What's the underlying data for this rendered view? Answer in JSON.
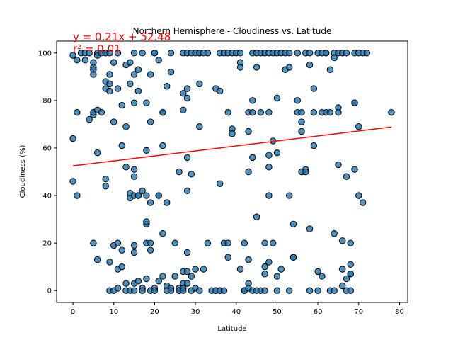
{
  "chart_data": {
    "type": "scatter",
    "title": "Northern Hemisphere - Cloudiness vs. Latitude",
    "xlabel": "Latitude",
    "ylabel": "Cloudiness (%)",
    "xlim": [
      -4,
      82
    ],
    "ylim": [
      -5,
      105
    ],
    "xticks": [
      0,
      10,
      20,
      30,
      40,
      50,
      60,
      70,
      80
    ],
    "yticks": [
      0,
      20,
      40,
      60,
      80,
      100
    ],
    "grid": false,
    "marker_color": "#1f77b4",
    "marker_edge_color": "#000000",
    "regression": {
      "equation": "y = 0.21x + 52.48",
      "r_squared": "r² = 0.01",
      "slope": 0.21,
      "intercept": 52.48,
      "x_range": [
        0,
        78
      ],
      "color": "#ff0000"
    },
    "points": [
      [
        0,
        99
      ],
      [
        0,
        64
      ],
      [
        0,
        46
      ],
      [
        1,
        97
      ],
      [
        1,
        40
      ],
      [
        1,
        75
      ],
      [
        2,
        100
      ],
      [
        3,
        100
      ],
      [
        3,
        97
      ],
      [
        4,
        100
      ],
      [
        4,
        72
      ],
      [
        5,
        96
      ],
      [
        5,
        94
      ],
      [
        5,
        93
      ],
      [
        5,
        91
      ],
      [
        5,
        74
      ],
      [
        5,
        75
      ],
      [
        5,
        20
      ],
      [
        6,
        100
      ],
      [
        6,
        99
      ],
      [
        6,
        76
      ],
      [
        6,
        58
      ],
      [
        6,
        13
      ],
      [
        7,
        100
      ],
      [
        7,
        75
      ],
      [
        8,
        100
      ],
      [
        8,
        88
      ],
      [
        8,
        85
      ],
      [
        8,
        47
      ],
      [
        8,
        44
      ],
      [
        9,
        12
      ],
      [
        9,
        0
      ],
      [
        9,
        100
      ],
      [
        9,
        91
      ],
      [
        9,
        87
      ],
      [
        9,
        84
      ],
      [
        10,
        96
      ],
      [
        10,
        71
      ],
      [
        10,
        19
      ],
      [
        10,
        0
      ],
      [
        11,
        100
      ],
      [
        11,
        85
      ],
      [
        11,
        1
      ],
      [
        11,
        20
      ],
      [
        11,
        9
      ],
      [
        12,
        78
      ],
      [
        12,
        61
      ],
      [
        12,
        10
      ],
      [
        12,
        17
      ],
      [
        13,
        95
      ],
      [
        13,
        69
      ],
      [
        13,
        52
      ],
      [
        13,
        3
      ],
      [
        13,
        0
      ],
      [
        14,
        96
      ],
      [
        14,
        87
      ],
      [
        14,
        39
      ],
      [
        14,
        41
      ],
      [
        14,
        0
      ],
      [
        15,
        100
      ],
      [
        15,
        91
      ],
      [
        15,
        79
      ],
      [
        15,
        48
      ],
      [
        15,
        51
      ],
      [
        15,
        40
      ],
      [
        15,
        19
      ],
      [
        15,
        16
      ],
      [
        15,
        3
      ],
      [
        15,
        0
      ],
      [
        16,
        93
      ],
      [
        16,
        84
      ],
      [
        16,
        40
      ],
      [
        16,
        40
      ],
      [
        16,
        4
      ],
      [
        17,
        100
      ],
      [
        17,
        1
      ],
      [
        17,
        0
      ],
      [
        17,
        42
      ],
      [
        18,
        79
      ],
      [
        18,
        59
      ],
      [
        18,
        28
      ],
      [
        18,
        29
      ],
      [
        18,
        20
      ],
      [
        18,
        5
      ],
      [
        18,
        40
      ],
      [
        19,
        91
      ],
      [
        19,
        71
      ],
      [
        19,
        37
      ],
      [
        19,
        20
      ],
      [
        19,
        17
      ],
      [
        19,
        0
      ],
      [
        20,
        100
      ],
      [
        20,
        100
      ],
      [
        20,
        1
      ],
      [
        20,
        0
      ],
      [
        21,
        97
      ],
      [
        21,
        40
      ],
      [
        21,
        4
      ],
      [
        21,
        40
      ],
      [
        22,
        61
      ],
      [
        22,
        75
      ],
      [
        22,
        75
      ],
      [
        22,
        24
      ],
      [
        22,
        6
      ],
      [
        23,
        86
      ],
      [
        23,
        37
      ],
      [
        23,
        2
      ],
      [
        23,
        0
      ],
      [
        24,
        1
      ],
      [
        24,
        0
      ],
      [
        24,
        92
      ],
      [
        24,
        100
      ],
      [
        25,
        20
      ],
      [
        25,
        6
      ],
      [
        26,
        50
      ],
      [
        26,
        0
      ],
      [
        26,
        1
      ],
      [
        26,
        0
      ],
      [
        27,
        100
      ],
      [
        27,
        76
      ],
      [
        27,
        83
      ],
      [
        27,
        8
      ],
      [
        27,
        3
      ],
      [
        27,
        1
      ],
      [
        27,
        0
      ],
      [
        28,
        100
      ],
      [
        28,
        85
      ],
      [
        28,
        81
      ],
      [
        28,
        56
      ],
      [
        28,
        42
      ],
      [
        28,
        16
      ],
      [
        28,
        8
      ],
      [
        28,
        3
      ],
      [
        29,
        100
      ],
      [
        29,
        49
      ],
      [
        29,
        0
      ],
      [
        29,
        6
      ],
      [
        30,
        100
      ],
      [
        30,
        9
      ],
      [
        30,
        1
      ],
      [
        31,
        100
      ],
      [
        31,
        100
      ],
      [
        31,
        87
      ],
      [
        31,
        69
      ],
      [
        31,
        0
      ],
      [
        32,
        9
      ],
      [
        32,
        100
      ],
      [
        33,
        100
      ],
      [
        33,
        20
      ],
      [
        34,
        0
      ],
      [
        35,
        85
      ],
      [
        35,
        0
      ],
      [
        35,
        0
      ],
      [
        36,
        100
      ],
      [
        36,
        84
      ],
      [
        36,
        45
      ],
      [
        36,
        0
      ],
      [
        36,
        0
      ],
      [
        37,
        20
      ],
      [
        37,
        0
      ],
      [
        37,
        100
      ],
      [
        38,
        100
      ],
      [
        38,
        75
      ],
      [
        38,
        20
      ],
      [
        38,
        14
      ],
      [
        39,
        100
      ],
      [
        39,
        68
      ],
      [
        39,
        66
      ],
      [
        40,
        100
      ],
      [
        41,
        100
      ],
      [
        41,
        96
      ],
      [
        41,
        9
      ],
      [
        41,
        94
      ],
      [
        42,
        0
      ],
      [
        42,
        20
      ],
      [
        42,
        0
      ],
      [
        43,
        50
      ],
      [
        43,
        75
      ],
      [
        43,
        67
      ],
      [
        43,
        13
      ],
      [
        43,
        3
      ],
      [
        43,
        1
      ],
      [
        44,
        100
      ],
      [
        44,
        80
      ],
      [
        44,
        75
      ],
      [
        44,
        56
      ],
      [
        44,
        0
      ],
      [
        45,
        100
      ],
      [
        45,
        94
      ],
      [
        45,
        0
      ],
      [
        45,
        31
      ],
      [
        46,
        100
      ],
      [
        46,
        75
      ],
      [
        46,
        0
      ],
      [
        47,
        20
      ],
      [
        47,
        100
      ],
      [
        47,
        10
      ],
      [
        47,
        7
      ],
      [
        47,
        0
      ],
      [
        48,
        100
      ],
      [
        48,
        75
      ],
      [
        48,
        57
      ],
      [
        48,
        52
      ],
      [
        48,
        40
      ],
      [
        48,
        12
      ],
      [
        49,
        100
      ],
      [
        49,
        63
      ],
      [
        49,
        20
      ],
      [
        50,
        100
      ],
      [
        50,
        81
      ],
      [
        50,
        58
      ],
      [
        50,
        0
      ],
      [
        50,
        6
      ],
      [
        51,
        100
      ],
      [
        51,
        9
      ],
      [
        52,
        93
      ],
      [
        52,
        100
      ],
      [
        53,
        94
      ],
      [
        53,
        100
      ],
      [
        53,
        40
      ],
      [
        53,
        0
      ],
      [
        54,
        28
      ],
      [
        54,
        14
      ],
      [
        54,
        14
      ],
      [
        55,
        80
      ],
      [
        55,
        75
      ],
      [
        55,
        100
      ],
      [
        56,
        75
      ],
      [
        56,
        71
      ],
      [
        56,
        67
      ],
      [
        56,
        50
      ],
      [
        57,
        100
      ],
      [
        57,
        51
      ],
      [
        57,
        50
      ],
      [
        58,
        0
      ],
      [
        58,
        100
      ],
      [
        58,
        26
      ],
      [
        58,
        95
      ],
      [
        59,
        75
      ],
      [
        59,
        61
      ],
      [
        59,
        85
      ],
      [
        60,
        100
      ],
      [
        60,
        8
      ],
      [
        60,
        0
      ],
      [
        61,
        100
      ],
      [
        61,
        75
      ],
      [
        61,
        6
      ],
      [
        62,
        100
      ],
      [
        62,
        75
      ],
      [
        62,
        100
      ],
      [
        63,
        93
      ],
      [
        63,
        75
      ],
      [
        63,
        0
      ],
      [
        64,
        100
      ],
      [
        64,
        98
      ],
      [
        64,
        24
      ],
      [
        64,
        0
      ],
      [
        65,
        100
      ],
      [
        65,
        77
      ],
      [
        65,
        75
      ],
      [
        65,
        53
      ],
      [
        66,
        100
      ],
      [
        66,
        21
      ],
      [
        66,
        9
      ],
      [
        66,
        2
      ],
      [
        67,
        100
      ],
      [
        67,
        48
      ],
      [
        67,
        5
      ],
      [
        67,
        0
      ],
      [
        68,
        20
      ],
      [
        68,
        11
      ],
      [
        68,
        7
      ],
      [
        68,
        7
      ],
      [
        68,
        0
      ],
      [
        69,
        100
      ],
      [
        69,
        51
      ],
      [
        69,
        79
      ],
      [
        69,
        79
      ],
      [
        70,
        100
      ],
      [
        70,
        69
      ],
      [
        70,
        40
      ],
      [
        71,
        37
      ],
      [
        71,
        100
      ],
      [
        72,
        100
      ],
      [
        78,
        75
      ]
    ]
  }
}
